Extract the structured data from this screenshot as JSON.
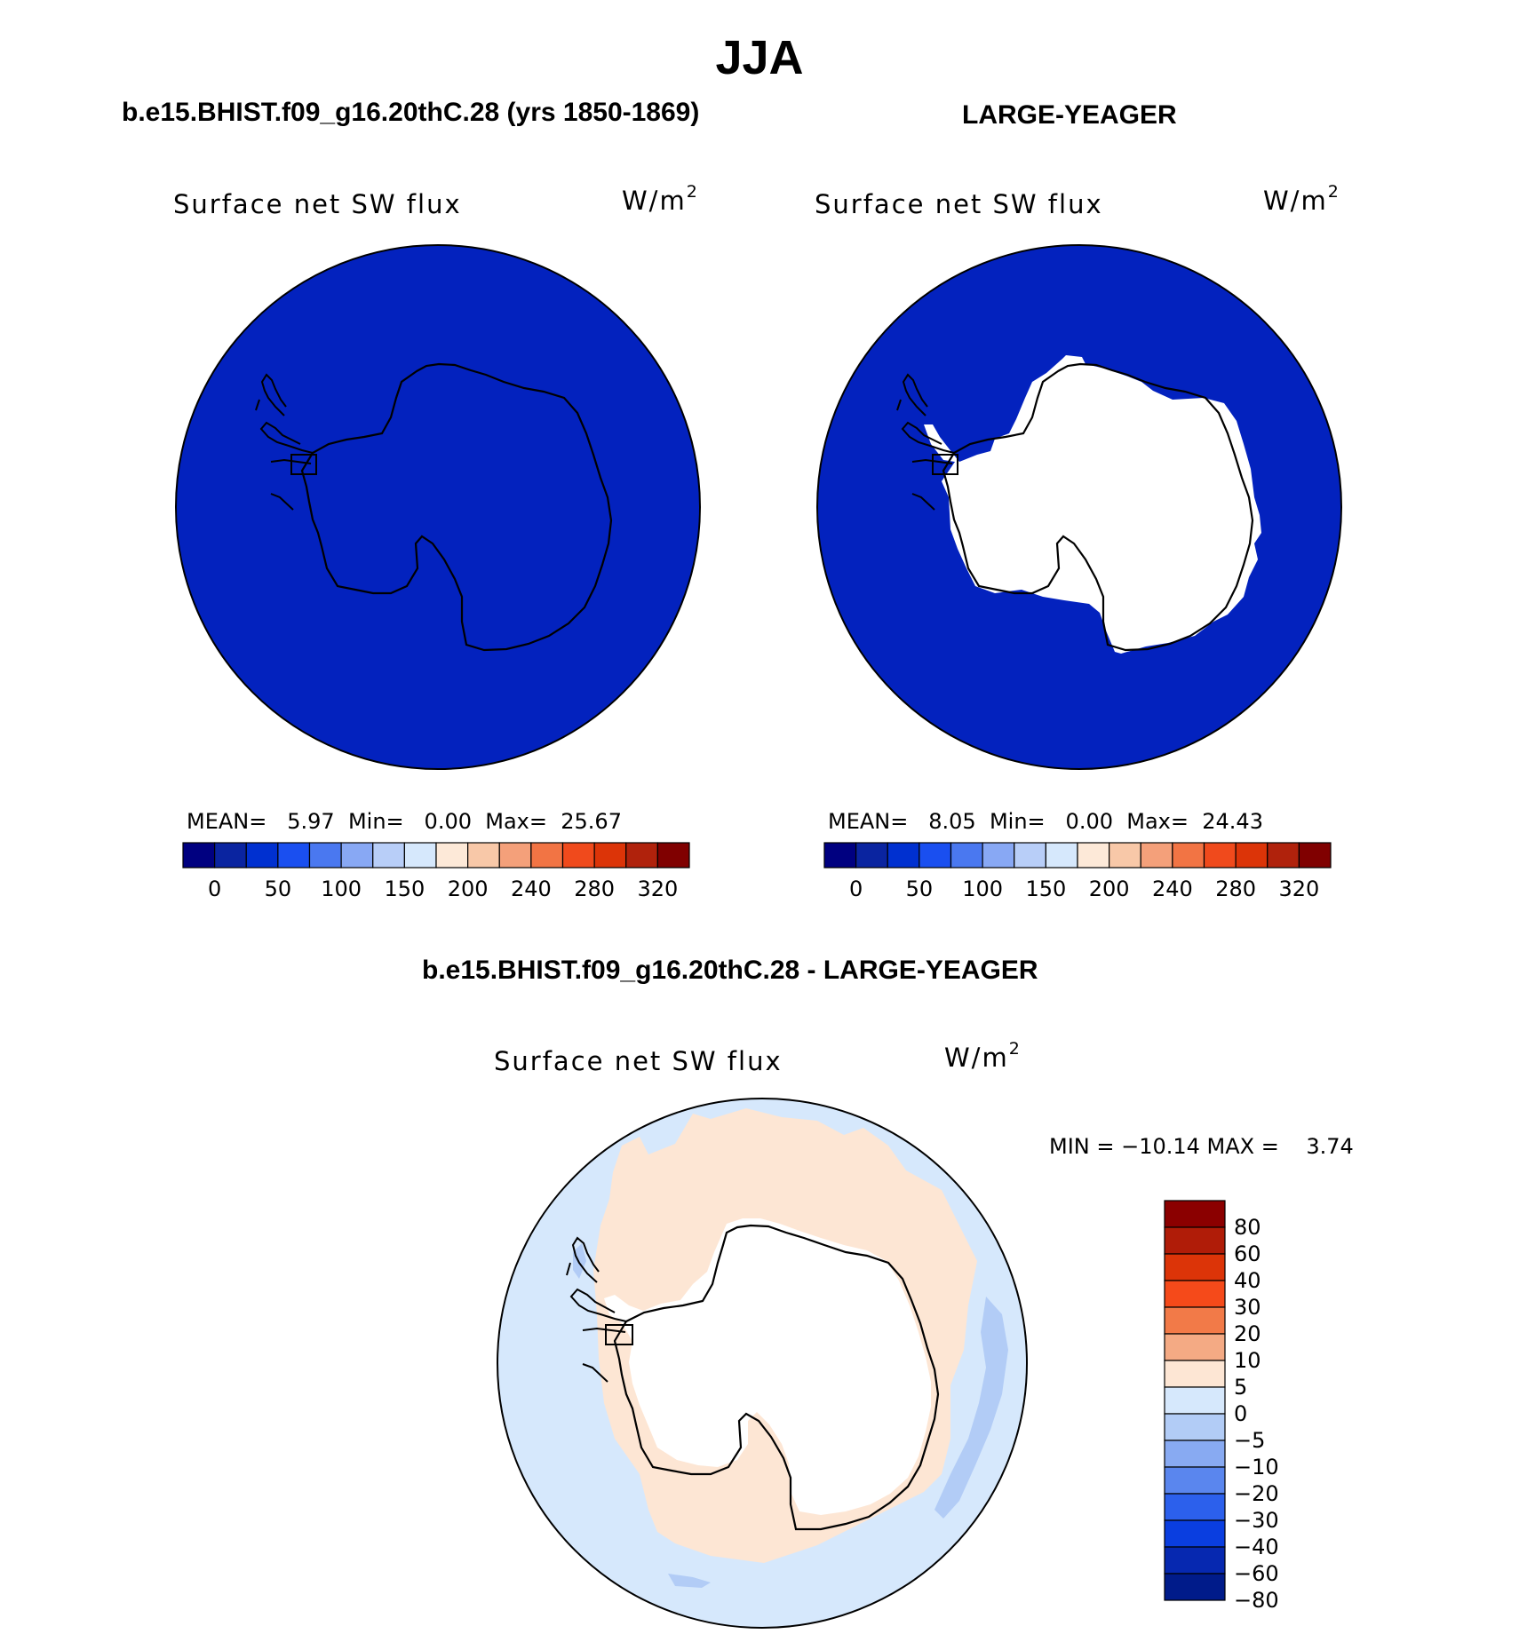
{
  "page_title": "JJA",
  "panels": [
    {
      "title": "b.e15.BHIST.f09_g16.20thC.28 (yrs 1850-1869)",
      "variable": "Surface net SW flux",
      "units": "W/m",
      "units_exp": "2",
      "stats": {
        "mean_label": "MEAN=",
        "mean": "5.97",
        "min_label": "Min=",
        "min": "0.00",
        "max_label": "Max=",
        "max": "25.67"
      },
      "field": "uniform low values (0–25 W/m²) over ocean and Antarctica"
    },
    {
      "title": "LARGE-YEAGER",
      "variable": "Surface net SW flux",
      "units": "W/m",
      "units_exp": "2",
      "stats": {
        "mean_label": "MEAN=",
        "mean": "8.05",
        "min_label": "Min=",
        "min": "0.00",
        "max_label": "Max=",
        "max": "24.43"
      },
      "field": "low values (0–25 W/m²) over ocean; Antarctic continent masked"
    }
  ],
  "abs_colorbar": {
    "colors": [
      "#000080",
      "#0a24a0",
      "#0030d0",
      "#1a4ff0",
      "#4a78f0",
      "#88a8f4",
      "#b8cef8",
      "#d6e8fc",
      "#fde9d8",
      "#f8c8a8",
      "#f4a07a",
      "#f27444",
      "#f04a1c",
      "#dc3408",
      "#b0220c",
      "#800000"
    ],
    "labels": [
      "0",
      "50",
      "100",
      "150",
      "200",
      "240",
      "280",
      "320"
    ]
  },
  "diff_panel": {
    "title": "b.e15.BHIST.f09_g16.20thC.28 - LARGE-YEAGER",
    "variable": "Surface net SW flux",
    "units": "W/m",
    "units_exp": "2",
    "minmax": "MIN = −10.14 MAX =    3.74",
    "field": "0 to 5 W/m² band around Antarctica; -5 to 0 over open ocean; -10 to -5 patches; continent masked"
  },
  "diff_colorbar": {
    "colors": [
      "#8b0000",
      "#b01c08",
      "#dc3408",
      "#f54a1a",
      "#f27a48",
      "#f4aa84",
      "#fde6d4",
      "#d6e8fc",
      "#b2ccf6",
      "#88aaf2",
      "#5a86ee",
      "#2c60ec",
      "#0a3ee0",
      "#0628b0",
      "#001b8a"
    ],
    "labels": [
      "80",
      "60",
      "40",
      "30",
      "20",
      "10",
      "5",
      "0",
      "−5",
      "−10",
      "−20",
      "−30",
      "−40",
      "−60",
      "−80"
    ]
  },
  "colors": {
    "low_flux": "#0322be",
    "pos_small": "#fde6d4",
    "neg_small": "#d6e8fc",
    "neg_med": "#b2ccf6",
    "land_mask": "#ffffff"
  }
}
